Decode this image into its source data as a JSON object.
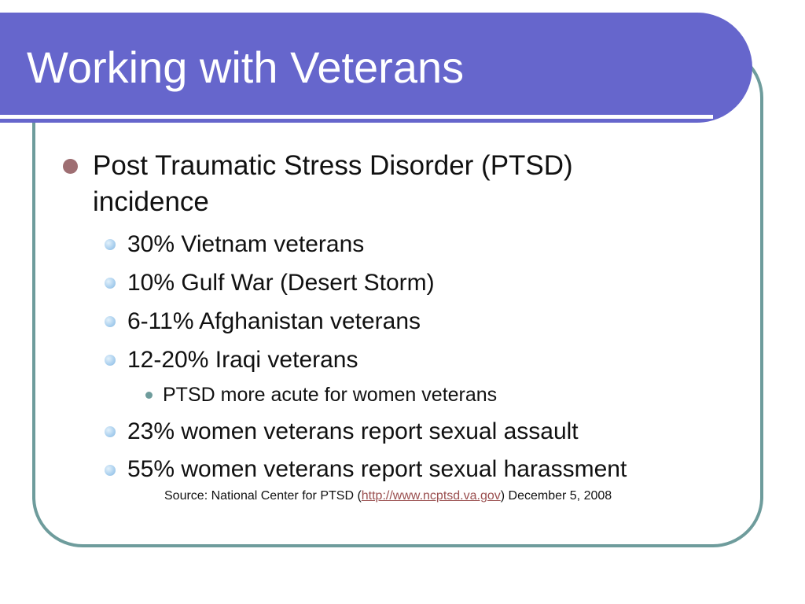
{
  "slide": {
    "title": "Working with Veterans",
    "main_point": "Post Traumatic Stress Disorder (PTSD) incidence",
    "items": [
      "30% Vietnam veterans",
      "10% Gulf War (Desert Storm)",
      "6-11% Afghanistan veterans",
      "12-20% Iraqi veterans"
    ],
    "sub_point": "PTSD more acute for women veterans",
    "items_after": [
      "23% women veterans report sexual assault",
      "55% women veterans report sexual harassment"
    ],
    "source": {
      "prefix": "Source: National Center for PTSD (",
      "link_text": "http://www.ncptsd.va.gov",
      "suffix": ") December 5, 2008"
    }
  },
  "colors": {
    "title_bar": "#6666cc",
    "frame": "#6e9c9c",
    "level1_bullet": "#9e6e72",
    "level2_bullet": "#a9cfee",
    "link": "#9a4f4f"
  },
  "icons": {
    "level1_bullet": "round-bullet-icon",
    "level2_bullet": "sphere-bullet-icon",
    "level3_bullet": "small-dot-bullet-icon"
  }
}
